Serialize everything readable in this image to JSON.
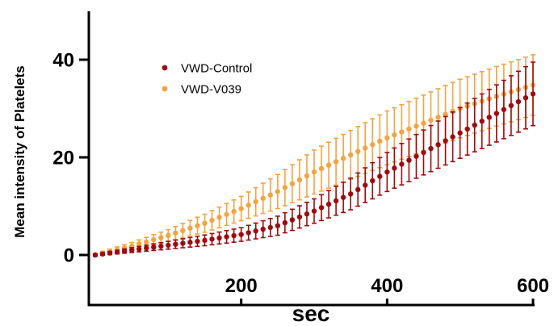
{
  "chart_data": {
    "type": "scatter",
    "xlabel": "sec",
    "ylabel": "Mean intensity of Platelets",
    "xlim": [
      -10,
      610
    ],
    "ylim": [
      -10,
      50
    ],
    "xticks": [
      200,
      400,
      600
    ],
    "yticks": [
      0,
      20,
      40
    ],
    "grid": false,
    "legend_position": "top-left",
    "x_start": 0,
    "x_step": 10,
    "x_end": 600,
    "series": [
      {
        "name": "VWD-Control",
        "color": "#9e0b0f",
        "mean_anchors": [
          [
            0,
            0
          ],
          [
            50,
            1.0
          ],
          [
            100,
            2.0
          ],
          [
            150,
            3.0
          ],
          [
            200,
            4.2
          ],
          [
            250,
            6.0
          ],
          [
            300,
            9.0
          ],
          [
            350,
            12.5
          ],
          [
            400,
            17.0
          ],
          [
            450,
            21.0
          ],
          [
            500,
            25.0
          ],
          [
            550,
            29.0
          ],
          [
            600,
            33.0
          ]
        ],
        "error_anchors": [
          [
            0,
            0.2
          ],
          [
            100,
            0.8
          ],
          [
            200,
            1.4
          ],
          [
            300,
            2.5
          ],
          [
            400,
            4.0
          ],
          [
            500,
            5.2
          ],
          [
            600,
            6.5
          ]
        ]
      },
      {
        "name": "VWD-V039",
        "color": "#f4a340",
        "mean_anchors": [
          [
            0,
            0
          ],
          [
            50,
            1.8
          ],
          [
            100,
            4.0
          ],
          [
            150,
            6.5
          ],
          [
            200,
            9.5
          ],
          [
            250,
            13.0
          ],
          [
            300,
            17.0
          ],
          [
            350,
            20.5
          ],
          [
            400,
            24.0
          ],
          [
            450,
            27.0
          ],
          [
            500,
            30.0
          ],
          [
            550,
            32.5
          ],
          [
            600,
            34.8
          ]
        ],
        "error_anchors": [
          [
            0,
            0.3
          ],
          [
            100,
            1.2
          ],
          [
            200,
            2.5
          ],
          [
            300,
            4.5
          ],
          [
            400,
            5.5
          ],
          [
            500,
            6.0
          ],
          [
            600,
            6.2
          ]
        ]
      }
    ]
  }
}
